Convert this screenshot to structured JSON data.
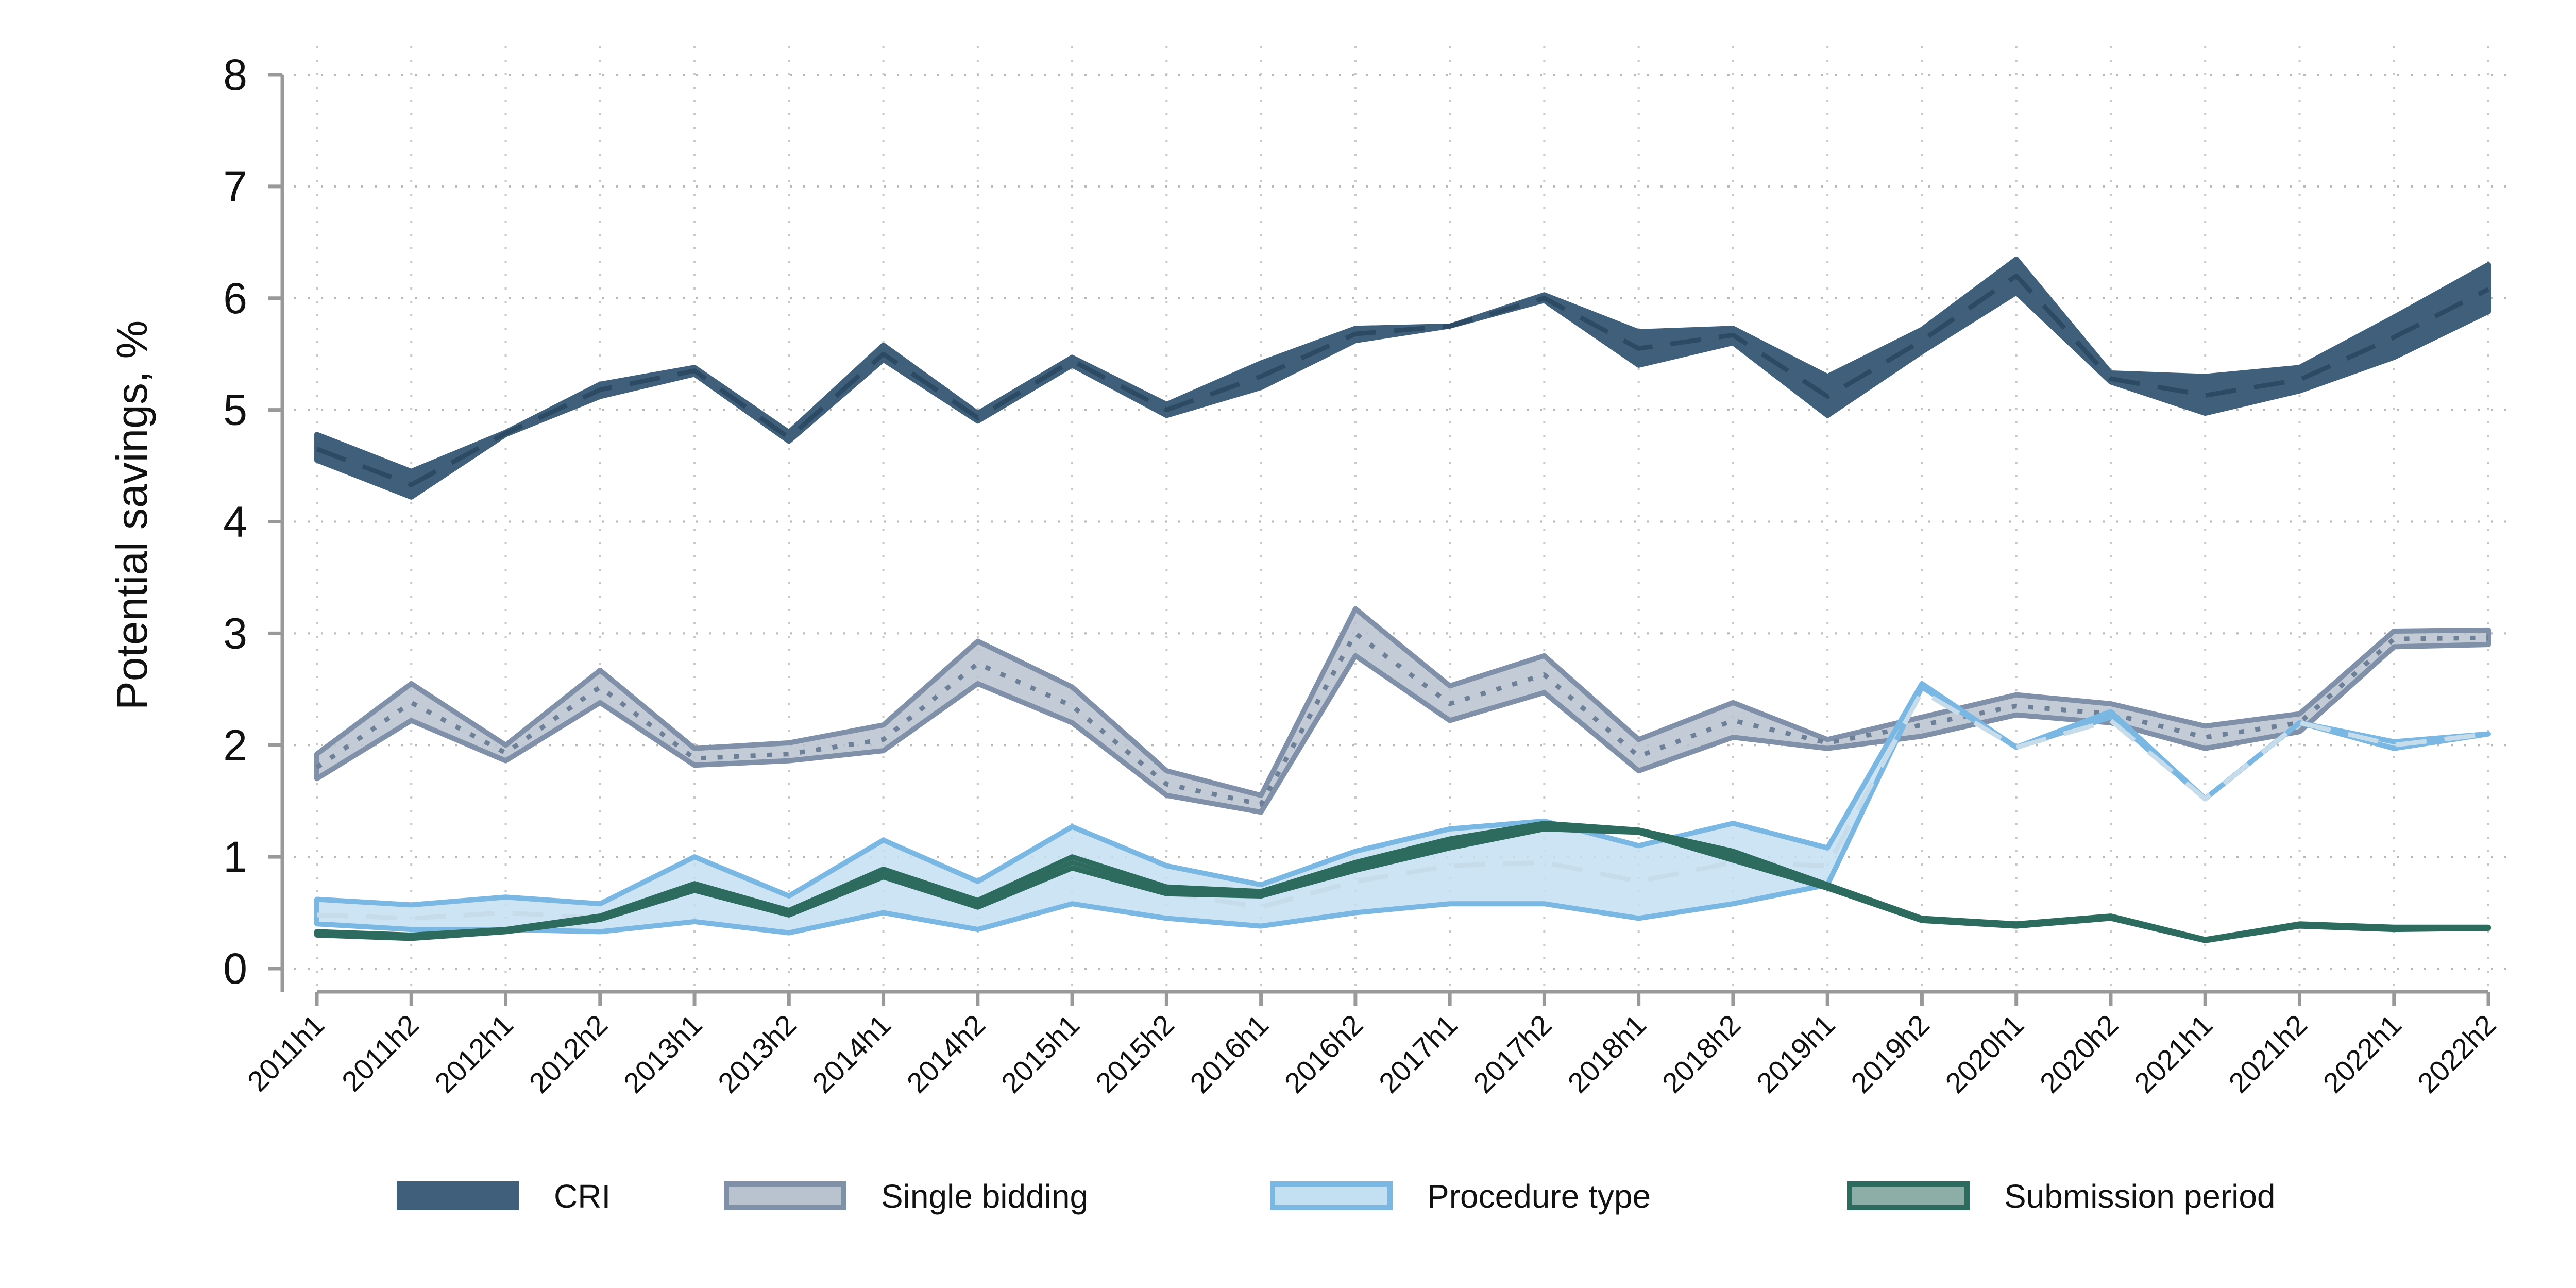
{
  "chart_data": {
    "type": "area",
    "title": "",
    "xlabel": "",
    "ylabel": "Potential savings, %",
    "ylim": [
      0,
      8
    ],
    "yticks": [
      "0",
      "1",
      "2",
      "3",
      "4",
      "5",
      "6",
      "7",
      "8"
    ],
    "categories": [
      "2011h1",
      "2011h2",
      "2012h1",
      "2012h2",
      "2013h1",
      "2013h2",
      "2014h1",
      "2014h2",
      "2015h1",
      "2015h2",
      "2016h1",
      "2016h2",
      "2017h1",
      "2017h2",
      "2018h1",
      "2018h2",
      "2019h1",
      "2019h2",
      "2020h1",
      "2020h2",
      "2021h1",
      "2021h2",
      "2022h1",
      "2022h2"
    ],
    "grid": true,
    "legend_position": "bottom",
    "series": [
      {
        "name": "CRI",
        "color": "#3f5f7a",
        "line_style": "dash",
        "lower": [
          4.55,
          4.22,
          4.78,
          5.12,
          5.32,
          4.72,
          5.45,
          4.9,
          5.4,
          4.95,
          5.2,
          5.62,
          5.75,
          5.98,
          5.4,
          5.6,
          4.95,
          5.52,
          6.05,
          5.25,
          4.97,
          5.17,
          5.47,
          5.88
        ],
        "mid": [
          4.65,
          4.33,
          4.79,
          5.18,
          5.35,
          4.75,
          5.5,
          4.93,
          5.44,
          5.0,
          5.3,
          5.68,
          5.75,
          6.0,
          5.55,
          5.67,
          5.12,
          5.62,
          6.2,
          5.28,
          5.13,
          5.27,
          5.65,
          6.08
        ],
        "upper": [
          4.78,
          4.45,
          4.8,
          5.23,
          5.38,
          4.8,
          5.58,
          4.97,
          5.47,
          5.05,
          5.42,
          5.73,
          5.75,
          6.03,
          5.7,
          5.73,
          5.3,
          5.72,
          6.35,
          5.33,
          5.3,
          5.38,
          5.83,
          6.3
        ]
      },
      {
        "name": "Single bidding",
        "color": "#8090a8",
        "line_style": "dot",
        "lower": [
          1.7,
          2.22,
          1.86,
          2.38,
          1.82,
          1.86,
          1.95,
          2.55,
          2.2,
          1.55,
          1.4,
          2.8,
          2.22,
          2.47,
          1.77,
          2.07,
          1.97,
          2.08,
          2.27,
          2.2,
          1.97,
          2.12,
          2.88,
          2.9
        ],
        "mid": [
          1.8,
          2.38,
          1.93,
          2.52,
          1.88,
          1.92,
          2.05,
          2.73,
          2.35,
          1.65,
          1.47,
          3.0,
          2.37,
          2.63,
          1.9,
          2.22,
          2.02,
          2.18,
          2.35,
          2.28,
          2.07,
          2.2,
          2.95,
          2.96
        ],
        "upper": [
          1.92,
          2.55,
          2.0,
          2.67,
          1.97,
          2.02,
          2.18,
          2.93,
          2.52,
          1.77,
          1.55,
          3.22,
          2.53,
          2.8,
          2.05,
          2.38,
          2.05,
          2.25,
          2.45,
          2.37,
          2.17,
          2.28,
          3.02,
          3.03
        ]
      },
      {
        "name": "Procedure type",
        "color": "#7ab8e3",
        "line_style": "dash",
        "lower": [
          0.4,
          0.35,
          0.35,
          0.33,
          0.42,
          0.32,
          0.5,
          0.35,
          0.58,
          0.45,
          0.38,
          0.5,
          0.58,
          0.58,
          0.45,
          0.58,
          0.75,
          2.52,
          1.98,
          2.25,
          1.52,
          2.2,
          1.97,
          2.1
        ],
        "mid": [
          0.48,
          0.45,
          0.5,
          0.45,
          0.7,
          0.48,
          0.83,
          0.57,
          0.92,
          0.68,
          0.55,
          0.78,
          0.92,
          0.95,
          0.78,
          0.95,
          0.92,
          2.48,
          1.98,
          2.22,
          1.52,
          2.2,
          2.0,
          2.1
        ],
        "upper": [
          0.62,
          0.57,
          0.64,
          0.58,
          1.0,
          0.65,
          1.15,
          0.78,
          1.27,
          0.92,
          0.75,
          1.05,
          1.25,
          1.32,
          1.1,
          1.3,
          1.08,
          2.55,
          1.98,
          2.3,
          1.52,
          2.2,
          2.03,
          2.1
        ]
      },
      {
        "name": "Submission period",
        "color": "#2d6b5f",
        "line_style": "solid",
        "lower": [
          0.3,
          0.27,
          0.33,
          0.44,
          0.7,
          0.48,
          0.82,
          0.55,
          0.9,
          0.67,
          0.65,
          0.88,
          1.08,
          1.25,
          1.22,
          0.97,
          0.72,
          0.43,
          0.38,
          0.45,
          0.25,
          0.38,
          0.35,
          0.36
        ],
        "mid": [
          0.31,
          0.28,
          0.34,
          0.46,
          0.73,
          0.5,
          0.85,
          0.58,
          0.95,
          0.7,
          0.67,
          0.92,
          1.12,
          1.28,
          1.23,
          1.01,
          0.73,
          0.44,
          0.39,
          0.46,
          0.25,
          0.39,
          0.36,
          0.36
        ],
        "upper": [
          0.33,
          0.3,
          0.35,
          0.47,
          0.76,
          0.52,
          0.89,
          0.61,
          1.0,
          0.73,
          0.69,
          0.95,
          1.16,
          1.3,
          1.24,
          1.05,
          0.75,
          0.45,
          0.4,
          0.47,
          0.26,
          0.4,
          0.37,
          0.37
        ]
      }
    ]
  }
}
